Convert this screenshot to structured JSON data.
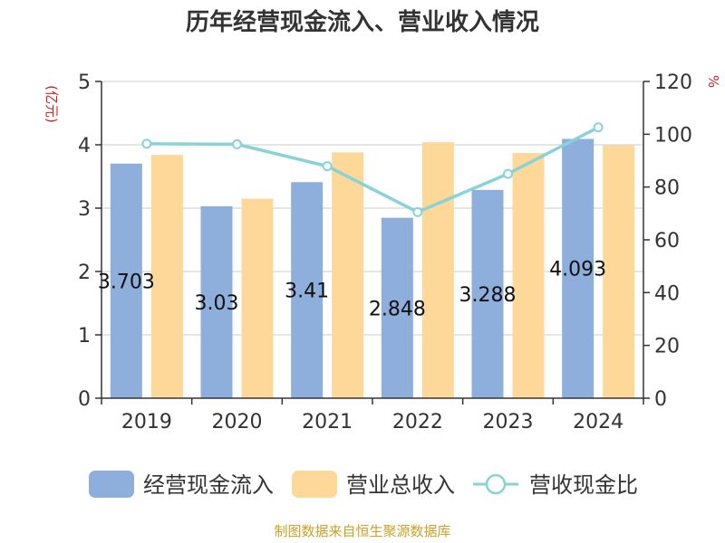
{
  "title": "历年经营现金流入、营业收入情况",
  "source": "制图数据来自恒生聚源数据库",
  "chart_data": {
    "type": "bar",
    "categories": [
      "2019",
      "2020",
      "2021",
      "2022",
      "2023",
      "2024"
    ],
    "series": [
      {
        "name": "经营现金流入",
        "type": "bar",
        "axis": "left",
        "values": [
          3.703,
          3.03,
          3.41,
          2.848,
          3.288,
          4.093
        ],
        "color": "#8eaedc",
        "data_labels": true
      },
      {
        "name": "营业总收入",
        "type": "bar",
        "axis": "left",
        "values": [
          3.84,
          3.15,
          3.88,
          4.04,
          3.87,
          3.99
        ],
        "color": "#fdd899",
        "data_labels": false
      },
      {
        "name": "营收现金比",
        "type": "line",
        "axis": "right",
        "values": [
          96.4,
          96.2,
          87.9,
          70.5,
          85.0,
          102.6
        ],
        "color": "#88d3d8",
        "data_labels": false
      }
    ],
    "ylabel_left": "(亿元)",
    "ylabel_right": "%",
    "ylim_left": [
      0,
      5
    ],
    "yticks_left": [
      "0",
      "1",
      "2",
      "3",
      "4",
      "5"
    ],
    "ylim_right": [
      0,
      120
    ],
    "yticks_right": [
      "0",
      "20",
      "40",
      "60",
      "80",
      "100",
      "120"
    ],
    "grid": true,
    "legend": "bottom",
    "label_color": "#cc2222"
  }
}
